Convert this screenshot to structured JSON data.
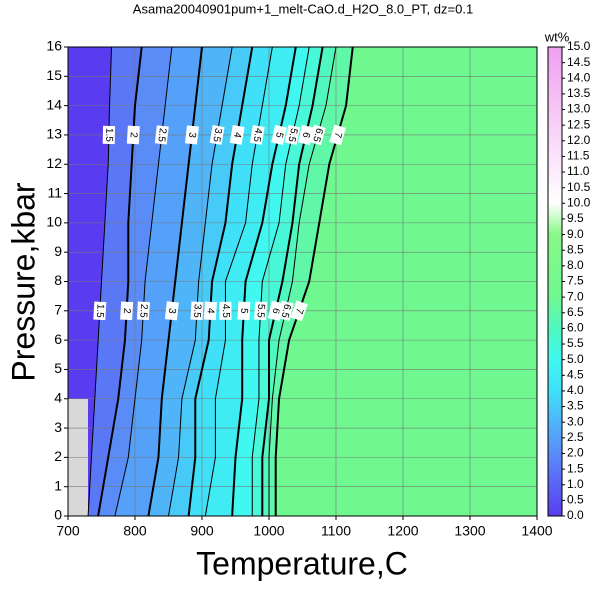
{
  "chart_data": {
    "type": "contour",
    "title": "Asama20040901pum+1_melt-CaO.d_H2O_8.0_PT, dz=0.1",
    "x_label": "Temperature,C",
    "y_label": "Pressure,kbar",
    "colorbar_label": "wt%",
    "xlim": [
      700,
      1400
    ],
    "xticks": [
      700,
      800,
      900,
      1000,
      1100,
      1200,
      1300,
      1400
    ],
    "ylim": [
      0,
      16
    ],
    "yticks": [
      0,
      1,
      2,
      3,
      4,
      5,
      6,
      7,
      8,
      9,
      10,
      11,
      12,
      13,
      14,
      15,
      16
    ],
    "grid": true,
    "pressures": [
      0,
      2,
      4,
      6,
      8,
      10,
      12,
      14,
      16
    ],
    "contours": [
      {
        "level": 1.5,
        "x": [
          730,
          735,
          740,
          745,
          750,
          755,
          760,
          762,
          765
        ]
      },
      {
        "level": 2,
        "x": [
          745,
          760,
          775,
          785,
          790,
          790,
          795,
          800,
          810
        ]
      },
      {
        "level": 2.5,
        "x": [
          770,
          790,
          800,
          810,
          815,
          825,
          835,
          845,
          855
        ]
      },
      {
        "level": 3,
        "x": [
          820,
          835,
          840,
          850,
          860,
          870,
          880,
          890,
          900
        ]
      },
      {
        "level": 3.5,
        "x": [
          850,
          865,
          870,
          890,
          895,
          905,
          915,
          930,
          945
        ]
      },
      {
        "level": 4,
        "x": [
          880,
          890,
          890,
          910,
          915,
          935,
          945,
          960,
          975
        ]
      },
      {
        "level": 4.5,
        "x": [
          905,
          920,
          920,
          935,
          935,
          965,
          975,
          990,
          1005
        ]
      },
      {
        "level": 5,
        "x": [
          945,
          950,
          960,
          960,
          965,
          990,
          1005,
          1025,
          1040
        ]
      },
      {
        "level": 5.5,
        "x": [
          975,
          975,
          985,
          985,
          990,
          1015,
          1025,
          1045,
          1060
        ]
      },
      {
        "level": 6,
        "x": [
          990,
          990,
          1000,
          1000,
          1020,
          1035,
          1045,
          1065,
          1080
        ]
      },
      {
        "level": 6.5,
        "x": [
          1000,
          1000,
          1005,
          1015,
          1035,
          1045,
          1060,
          1085,
          1100
        ]
      },
      {
        "level": 7,
        "x": [
          1010,
          1010,
          1015,
          1030,
          1060,
          1075,
          1090,
          1115,
          1125
        ]
      }
    ],
    "colormap": [
      {
        "value": 0,
        "color": "#5a3cf0"
      },
      {
        "value": 2,
        "color": "#5a8cf8"
      },
      {
        "value": 3,
        "color": "#50b4f8"
      },
      {
        "value": 4,
        "color": "#40e0f8"
      },
      {
        "value": 5,
        "color": "#40f8f0"
      },
      {
        "value": 6,
        "color": "#50f8c0"
      },
      {
        "value": 7,
        "color": "#70f890"
      },
      {
        "value": 9,
        "color": "#88f888"
      },
      {
        "value": 10,
        "color": "#ffffff"
      },
      {
        "value": 15,
        "color": "#f0a0f0"
      }
    ],
    "colorbar_lim": [
      0,
      15
    ],
    "colorbar_ticks": [
      {
        "value": 0,
        "label": "0.0"
      },
      {
        "value": 0.5,
        "label": "0.5"
      },
      {
        "value": 1,
        "label": "1.0"
      },
      {
        "value": 1.5,
        "label": "1.5"
      },
      {
        "value": 2,
        "label": "2.0"
      },
      {
        "value": 2.5,
        "label": "2.5"
      },
      {
        "value": 3,
        "label": "3.0"
      },
      {
        "value": 3.5,
        "label": "3.5"
      },
      {
        "value": 4,
        "label": "4.0"
      },
      {
        "value": 4.5,
        "label": "4.5"
      },
      {
        "value": 5,
        "label": "5.0"
      },
      {
        "value": 5.5,
        "label": "5.5"
      },
      {
        "value": 6,
        "label": "6.0"
      },
      {
        "value": 6.5,
        "label": "6.5"
      },
      {
        "value": 7,
        "label": "7.0"
      },
      {
        "value": 7.5,
        "label": "7.5"
      },
      {
        "value": 8,
        "label": "8.0"
      },
      {
        "value": 8.5,
        "label": "8.5"
      },
      {
        "value": 9,
        "label": "9.0"
      },
      {
        "value": 9.5,
        "label": "9.5"
      },
      {
        "value": 10,
        "label": "10.0"
      },
      {
        "value": 10.5,
        "label": "10.5"
      },
      {
        "value": 11,
        "label": "11.0"
      },
      {
        "value": 11.5,
        "label": "11.5"
      },
      {
        "value": 12,
        "label": "12.0"
      },
      {
        "value": 12.5,
        "label": "12.5"
      },
      {
        "value": 13,
        "label": "13.0"
      },
      {
        "value": 13.5,
        "label": "13.5"
      },
      {
        "value": 14,
        "label": "14.0"
      },
      {
        "value": 14.5,
        "label": "14.5"
      },
      {
        "value": 15,
        "label": "15.0"
      }
    ]
  }
}
